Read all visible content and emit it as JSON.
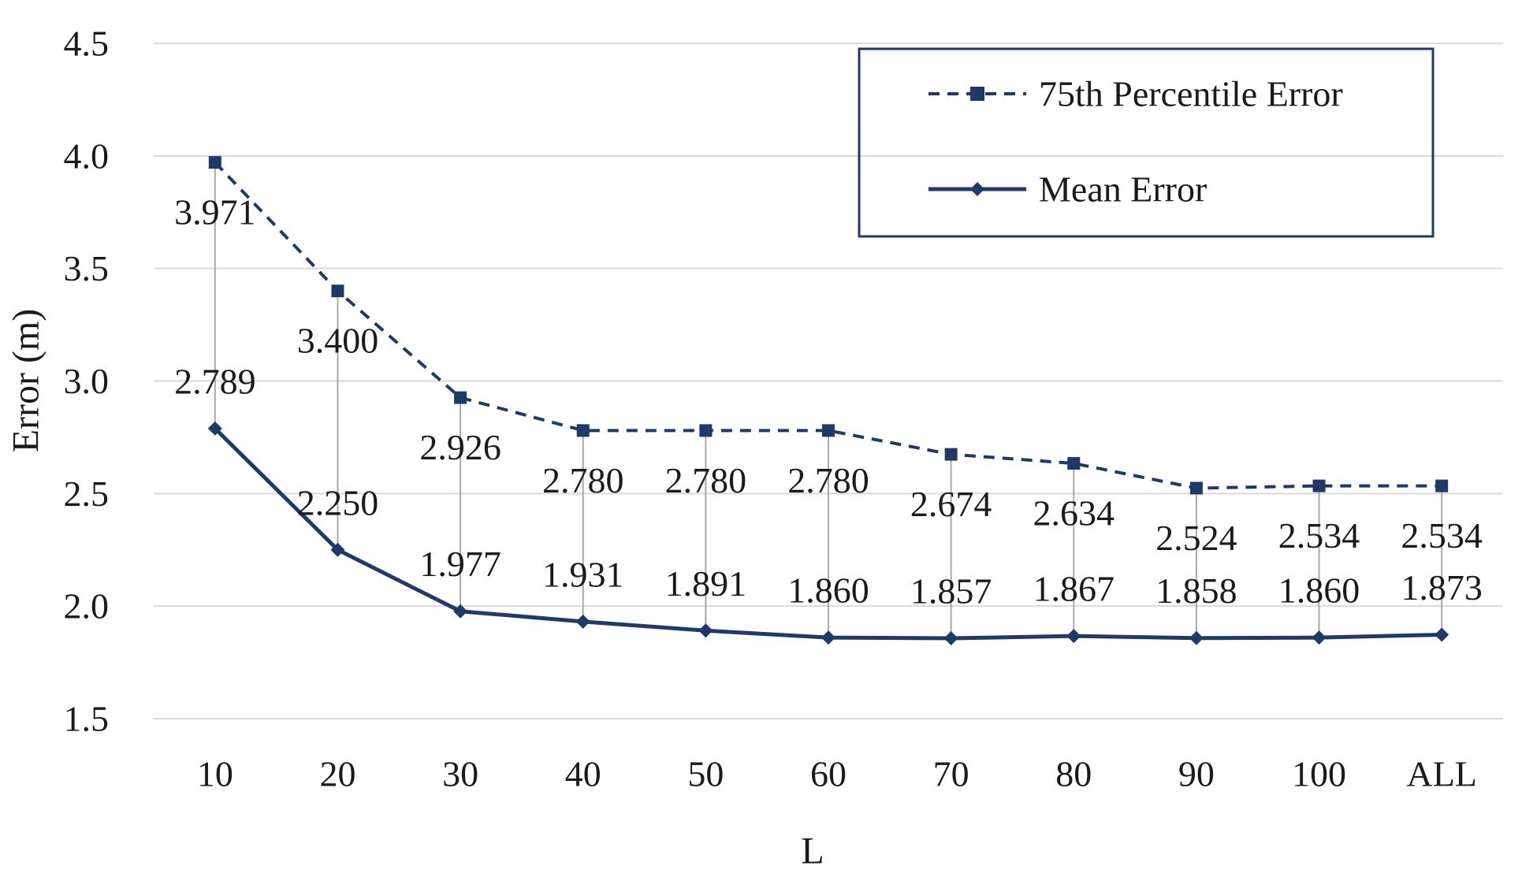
{
  "figure": {
    "background": "#ffffff"
  },
  "chart_data": {
    "type": "line",
    "title": "",
    "xlabel": "L",
    "ylabel": "Error (m)",
    "ylim": [
      1.5,
      4.5
    ],
    "ytick_step": 0.5,
    "yticks": [
      "4.5",
      "4.0",
      "3.5",
      "3.0",
      "2.5",
      "2.0",
      "1.5"
    ],
    "ytick_values": [
      4.5,
      4.0,
      3.5,
      3.0,
      2.5,
      2.0,
      1.5
    ],
    "categories": [
      "10",
      "20",
      "30",
      "40",
      "50",
      "60",
      "70",
      "80",
      "90",
      "100",
      "ALL"
    ],
    "grid": true,
    "high_low_lines": true,
    "legend_position": "top-right",
    "series": [
      {
        "name": "75th Percentile Error",
        "style": "dashed",
        "marker": "square",
        "label_position": "below",
        "values": [
          3.971,
          3.4,
          2.926,
          2.78,
          2.78,
          2.78,
          2.674,
          2.634,
          2.524,
          2.534,
          2.534
        ],
        "labels": [
          "3.971",
          "3.400",
          "2.926",
          "2.780",
          "2.780",
          "2.780",
          "2.674",
          "2.634",
          "2.524",
          "2.534",
          "2.534"
        ]
      },
      {
        "name": "Mean Error",
        "style": "solid",
        "marker": "diamond",
        "label_position": "above",
        "values": [
          2.789,
          2.25,
          1.977,
          1.931,
          1.891,
          1.86,
          1.857,
          1.867,
          1.858,
          1.86,
          1.873
        ],
        "labels": [
          "2.789",
          "2.250",
          "1.977",
          "1.931",
          "1.891",
          "1.860",
          "1.857",
          "1.867",
          "1.858",
          "1.860",
          "1.873"
        ]
      }
    ]
  },
  "colors": {
    "series_navy": "#1f3a68",
    "gridline": "#d9d9d9",
    "high_low_line": "#a9a9a9",
    "text": "#1a1a1a",
    "legend_border": "#1f3a68",
    "background": "#ffffff"
  }
}
